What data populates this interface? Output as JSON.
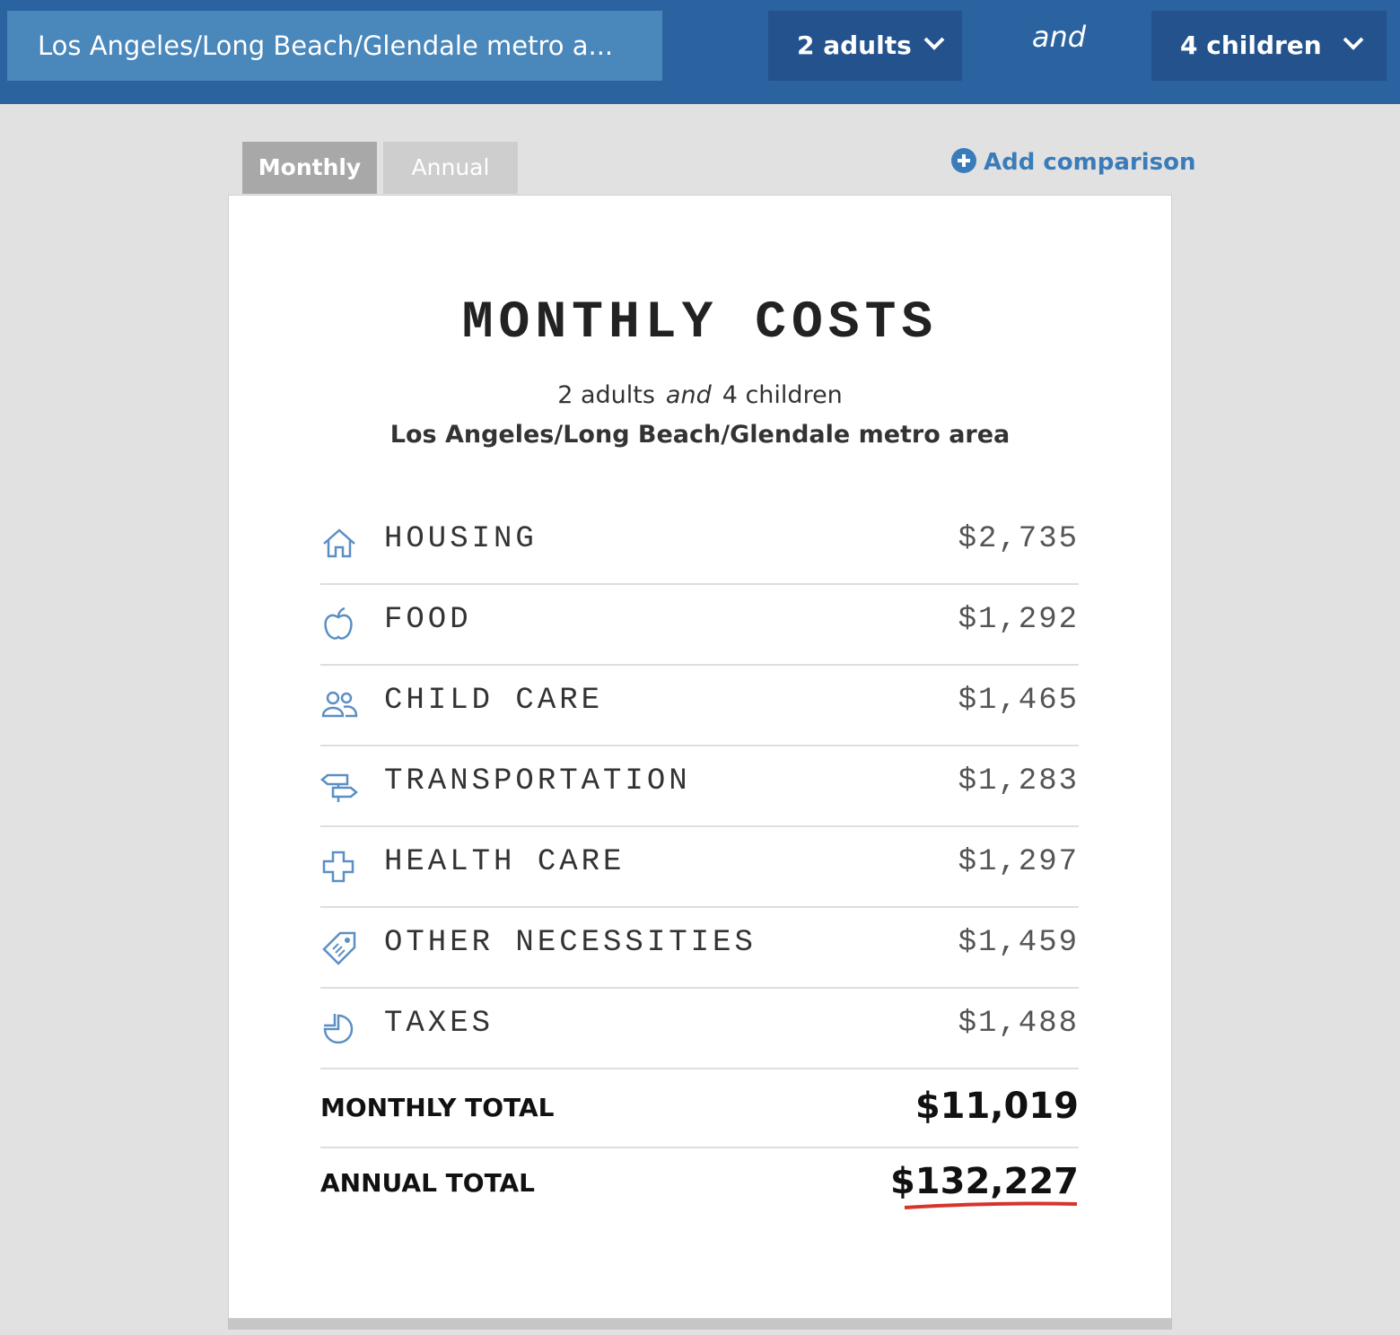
{
  "header": {
    "location": "Los Angeles/Long Beach/Glendale metro a...",
    "adults": "2 adults",
    "conjunction": "and",
    "children": "4 children"
  },
  "tabs": [
    "Monthly",
    "Annual"
  ],
  "add_comparison": "Add comparison",
  "card": {
    "title": "MONTHLY COSTS",
    "household": {
      "adults": "2 adults",
      "conjunction": "and",
      "children": "4 children"
    },
    "location": "Los Angeles/Long Beach/Glendale metro area",
    "rows": [
      {
        "label": "HOUSING",
        "value": "$2,735"
      },
      {
        "label": "FOOD",
        "value": "$1,292"
      },
      {
        "label": "CHILD CARE",
        "value": "$1,465"
      },
      {
        "label": "TRANSPORTATION",
        "value": "$1,283"
      },
      {
        "label": "HEALTH CARE",
        "value": "$1,297"
      },
      {
        "label": "OTHER NECESSITIES",
        "value": "$1,459"
      },
      {
        "label": "TAXES",
        "value": "$1,488"
      }
    ],
    "totals": [
      {
        "label": "MONTHLY TOTAL",
        "value": "$11,019"
      },
      {
        "label": "ANNUAL TOTAL",
        "value": "$132,227"
      }
    ]
  }
}
